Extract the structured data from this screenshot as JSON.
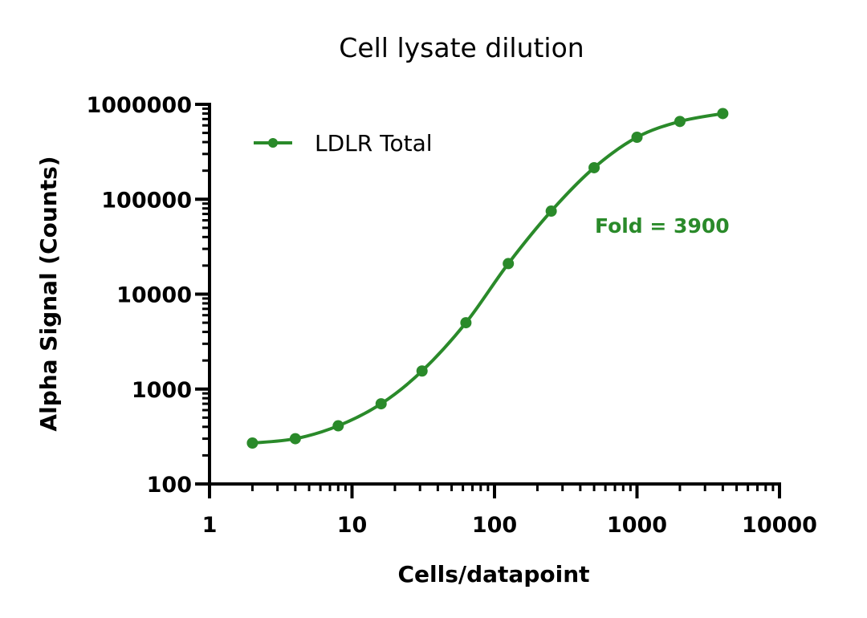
{
  "chart_data": {
    "type": "line",
    "title": "Cell  lysate dilution",
    "xlabel": "Cells/datapoint",
    "ylabel": "Alpha Signal (Counts)",
    "x_scale": "log",
    "y_scale": "log",
    "xlim": [
      1,
      10000
    ],
    "ylim": [
      100,
      1000000
    ],
    "x_ticks": [
      1,
      10,
      100,
      1000,
      10000
    ],
    "x_tick_labels": [
      "1",
      "10",
      "100",
      "1000",
      "10000"
    ],
    "y_ticks": [
      100,
      1000,
      10000,
      100000,
      1000000
    ],
    "y_tick_labels": [
      "100",
      "1000",
      "10000",
      "100000",
      "1000000"
    ],
    "grid": false,
    "legend_position": "top-left",
    "series": [
      {
        "name": "LDLR Total",
        "color": "#2a8a2a",
        "x": [
          2,
          4,
          8,
          16,
          31,
          63,
          125,
          250,
          500,
          1000,
          2000,
          4000
        ],
        "y": [
          270,
          300,
          410,
          700,
          1550,
          5000,
          21000,
          75000,
          215000,
          450000,
          660000,
          800000
        ]
      }
    ],
    "annotations": [
      {
        "text": "Fold = 3900",
        "color": "#2a8a2a"
      }
    ]
  }
}
